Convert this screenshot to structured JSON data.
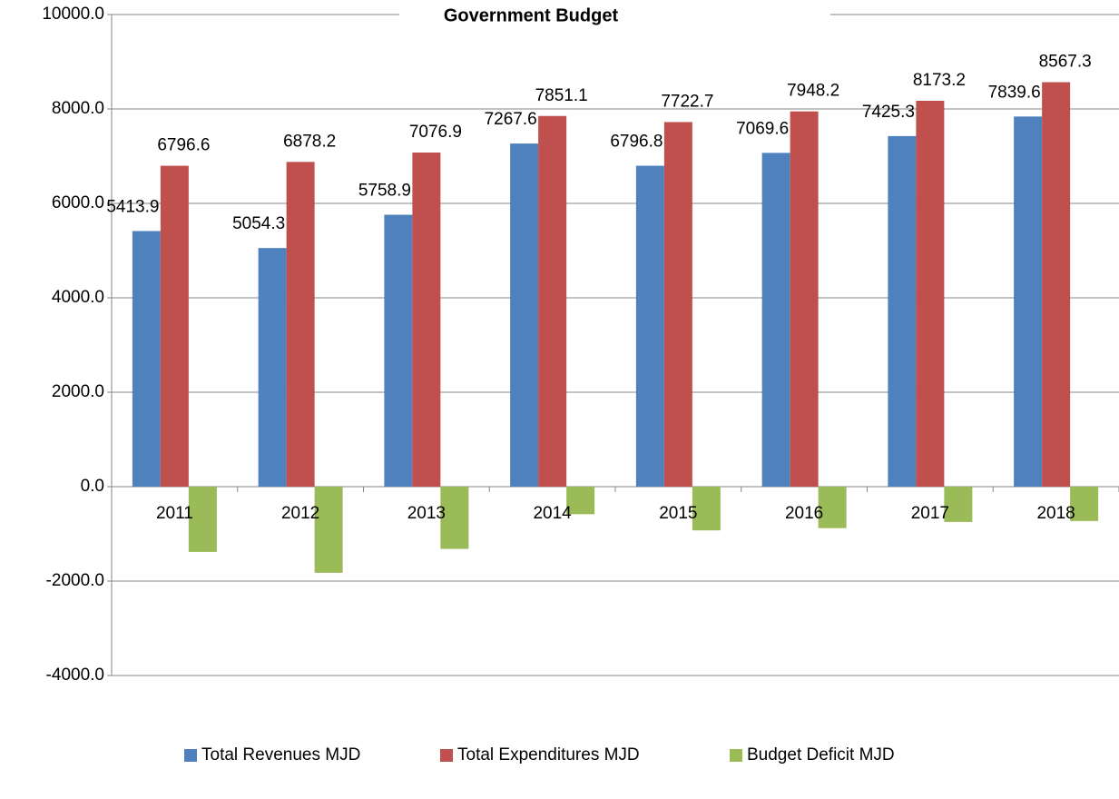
{
  "chart_data": {
    "type": "bar",
    "title": "Government Budget",
    "categories": [
      "2011",
      "2012",
      "2013",
      "2014",
      "2015",
      "2016",
      "2017",
      "2018"
    ],
    "series": [
      {
        "name": "Total Revenues MJD",
        "color": "#4f81bd",
        "values": [
          5413.9,
          5054.3,
          5758.9,
          7267.6,
          6796.8,
          7069.6,
          7425.3,
          7839.6
        ]
      },
      {
        "name": "Total Expenditures MJD",
        "color": "#c0504d",
        "values": [
          6796.6,
          6878.2,
          7076.9,
          7851.1,
          7722.7,
          7948.2,
          8173.2,
          8567.3
        ]
      },
      {
        "name": "Budget Deficit MJD",
        "color": "#9bbb59",
        "values": [
          -1382.7,
          -1823.9,
          -1318.0,
          -583.5,
          -925.9,
          -878.6,
          -747.9,
          -727.7
        ]
      }
    ],
    "ylim": [
      -4000,
      10000
    ],
    "yticks": [
      {
        "value": -4000,
        "label": "-4000.0"
      },
      {
        "value": -2000,
        "label": "-2000.0"
      },
      {
        "value": 0,
        "label": "0.0"
      },
      {
        "value": 2000,
        "label": "2000.0"
      },
      {
        "value": 4000,
        "label": "4000.0"
      },
      {
        "value": 6000,
        "label": "6000.0"
      },
      {
        "value": 8000,
        "label": "8000.0"
      },
      {
        "value": 10000,
        "label": "10000.0"
      }
    ],
    "grid": true,
    "legend": "bottom"
  }
}
